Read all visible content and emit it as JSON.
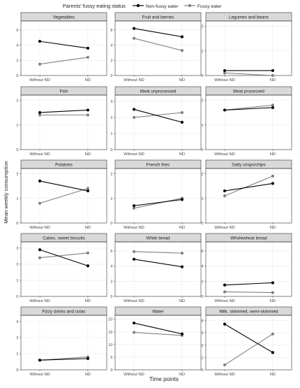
{
  "legend": {
    "title": "Parents' fussy eating status",
    "entries": [
      {
        "label": "Non-fussy eater",
        "color": "#000000"
      },
      {
        "label": "Fussy eater",
        "color": "#808080"
      }
    ]
  },
  "axes": {
    "xlabel": "Time points",
    "ylabel": "Mean weekly consumption"
  },
  "chart_data": {
    "type": "line",
    "x": [
      "Without ND",
      "ND"
    ],
    "series_names": [
      "Non-fussy eater",
      "Fussy eater"
    ],
    "colors": {
      "Non-fussy eater": "#000000",
      "Fussy eater": "#808080"
    },
    "panels": [
      {
        "title": "Vegetables",
        "ylim": [
          0,
          7
        ],
        "yticks": [
          "0",
          "2",
          "4",
          "6"
        ],
        "series": [
          {
            "name": "Non-fussy eater",
            "values": [
              4.5,
              3.6
            ]
          },
          {
            "name": "Fussy eater",
            "values": [
              1.5,
              2.4
            ]
          }
        ]
      },
      {
        "title": "Fruit and berries",
        "ylim": [
          0,
          7
        ],
        "yticks": [
          "0",
          "2",
          "4",
          "6"
        ],
        "series": [
          {
            "name": "Non-fussy eater",
            "values": [
              6.2,
              5.1
            ]
          },
          {
            "name": "Fussy eater",
            "values": [
              4.9,
              3.3
            ]
          }
        ]
      },
      {
        "title": "Legumes and beans",
        "ylim": [
          0,
          2.15
        ],
        "yticks": [
          "0",
          "1",
          "2"
        ],
        "series": [
          {
            "name": "Non-fussy eater",
            "values": [
              0.2,
              0.2
            ]
          },
          {
            "name": "Fussy eater",
            "values": [
              0.1,
              0.0
            ]
          }
        ]
      },
      {
        "title": "Fish",
        "ylim": [
          0,
          2.15
        ],
        "yticks": [
          "0",
          "1",
          "2"
        ],
        "series": [
          {
            "name": "Non-fussy eater",
            "values": [
              1.5,
              1.6
            ]
          },
          {
            "name": "Fussy eater",
            "values": [
              1.4,
              1.4
            ]
          }
        ]
      },
      {
        "title": "Meat unprocessed",
        "ylim": [
          0,
          3.3
        ],
        "yticks": [
          "0",
          "1",
          "2",
          "3"
        ],
        "series": [
          {
            "name": "Non-fussy eater",
            "values": [
              2.5,
              1.7
            ]
          },
          {
            "name": "Fussy eater",
            "values": [
              2.0,
              2.3
            ]
          }
        ]
      },
      {
        "title": "Meat processed",
        "ylim": [
          0,
          2.15
        ],
        "yticks": [
          "0",
          "1",
          "2"
        ],
        "series": [
          {
            "name": "Non-fussy eater",
            "values": [
              1.6,
              1.7
            ]
          },
          {
            "name": "Fussy eater",
            "values": [
              1.6,
              1.8
            ]
          }
        ]
      },
      {
        "title": "Potatoes",
        "ylim": [
          0,
          2.15
        ],
        "yticks": [
          "0",
          "1",
          "2"
        ],
        "series": [
          {
            "name": "Non-fussy eater",
            "values": [
              1.7,
              1.3
            ]
          },
          {
            "name": "Fussy eater",
            "values": [
              0.8,
              1.4
            ]
          }
        ]
      },
      {
        "title": "French fries",
        "ylim": [
          0,
          2.15
        ],
        "yticks": [
          "0",
          "1",
          "2"
        ],
        "series": [
          {
            "name": "Non-fussy eater",
            "values": [
              0.7,
              0.95
            ]
          },
          {
            "name": "Fussy eater",
            "values": [
              0.6,
              1.0
            ]
          }
        ]
      },
      {
        "title": "Salty crisps/chips",
        "ylim": [
          0,
          2.15
        ],
        "yticks": [
          "0",
          "1",
          "2"
        ],
        "series": [
          {
            "name": "Non-fussy eater",
            "values": [
              1.3,
              1.6
            ]
          },
          {
            "name": "Fussy eater",
            "values": [
              1.1,
              1.9
            ]
          }
        ]
      },
      {
        "title": "Cakes, sweet biscuits",
        "ylim": [
          0,
          3.3
        ],
        "yticks": [
          "0",
          "1",
          "2",
          "3"
        ],
        "series": [
          {
            "name": "Non-fussy eater",
            "values": [
              2.9,
              1.9
            ]
          },
          {
            "name": "Fussy eater",
            "values": [
              2.4,
              2.7
            ]
          }
        ]
      },
      {
        "title": "White bread",
        "ylim": [
          0,
          7
        ],
        "yticks": [
          "0",
          "2",
          "4",
          "6"
        ],
        "series": [
          {
            "name": "Non-fussy eater",
            "values": [
              4.9,
              3.9
            ]
          },
          {
            "name": "Fussy eater",
            "values": [
              5.9,
              5.7
            ]
          }
        ]
      },
      {
        "title": "Wholewheat bread",
        "ylim": [
          0,
          7
        ],
        "yticks": [
          "0",
          "2",
          "4",
          "6"
        ],
        "series": [
          {
            "name": "Non-fussy eater",
            "values": [
              1.5,
              1.8
            ]
          },
          {
            "name": "Fussy eater",
            "values": [
              0.6,
              0.5
            ]
          }
        ]
      },
      {
        "title": "Fizzy drinks and colas",
        "ylim": [
          0,
          3.3
        ],
        "yticks": [
          "0",
          "1",
          "2",
          "3"
        ],
        "series": [
          {
            "name": "Non-fussy eater",
            "values": [
              0.6,
              0.7
            ]
          },
          {
            "name": "Fussy eater",
            "values": [
              0.6,
              0.8
            ]
          }
        ]
      },
      {
        "title": "Water",
        "ylim": [
          0,
          21
        ],
        "yticks": [
          "0",
          "5",
          "10",
          "15",
          "20"
        ],
        "series": [
          {
            "name": "Non-fussy eater",
            "values": [
              18.5,
              14.2
            ]
          },
          {
            "name": "Fussy eater",
            "values": [
              14.8,
              13.6
            ]
          }
        ]
      },
      {
        "title": "Milk, skimmed, semi-skimmed",
        "ylim": [
          0,
          4.3
        ],
        "yticks": [
          "0",
          "1",
          "2",
          "3",
          "4"
        ],
        "series": [
          {
            "name": "Non-fussy eater",
            "values": [
              3.7,
              1.4
            ]
          },
          {
            "name": "Fussy eater",
            "values": [
              0.4,
              2.9
            ]
          }
        ]
      }
    ]
  }
}
